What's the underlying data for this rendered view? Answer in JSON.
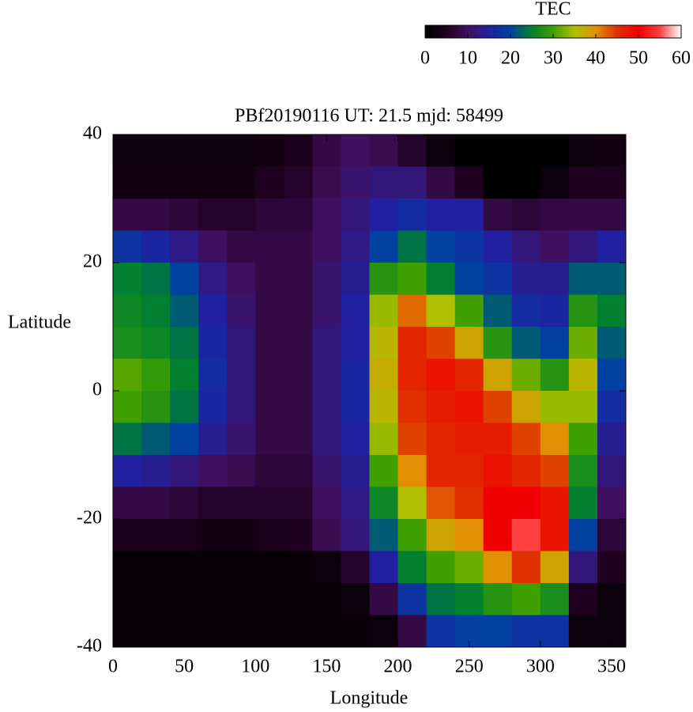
{
  "chart_data": {
    "type": "heatmap",
    "title": "PBf20190116  UT: 21.5  mjd: 58499",
    "xlabel": "Longitude",
    "ylabel": "Latitude",
    "xlim": [
      0,
      360
    ],
    "ylim": [
      -40,
      40
    ],
    "xticks": [
      0,
      50,
      100,
      150,
      200,
      250,
      300,
      350
    ],
    "yticks": [
      -40,
      -20,
      0,
      20,
      40
    ],
    "x": [
      10,
      30,
      50,
      70,
      90,
      110,
      130,
      150,
      170,
      190,
      210,
      230,
      250,
      270,
      290,
      310,
      330,
      350
    ],
    "y": [
      37.5,
      32.5,
      27.5,
      22.5,
      17.5,
      12.5,
      7.5,
      2.5,
      -2.5,
      -7.5,
      -12.5,
      -17.5,
      -22.5,
      -27.5,
      -32.5,
      -37.5
    ],
    "values": [
      [
        2,
        2,
        2,
        2,
        2,
        3,
        4,
        8,
        10,
        9,
        6,
        2,
        0,
        0,
        0,
        0,
        2,
        3
      ],
      [
        3,
        3,
        3,
        3,
        3,
        5,
        6,
        9,
        11,
        12,
        12,
        8,
        5,
        0,
        0,
        2,
        5,
        5
      ],
      [
        8,
        8,
        7,
        6,
        6,
        7,
        7,
        10,
        12,
        15,
        17,
        15,
        15,
        8,
        7,
        8,
        8,
        8
      ],
      [
        18,
        16,
        13,
        10,
        8,
        8,
        8,
        10,
        13,
        20,
        24,
        20,
        18,
        15,
        12,
        10,
        12,
        15
      ],
      [
        25,
        24,
        20,
        13,
        10,
        8,
        8,
        11,
        14,
        28,
        30,
        25,
        20,
        18,
        14,
        14,
        22,
        22
      ],
      [
        26,
        25,
        22,
        15,
        11,
        8,
        8,
        11,
        15,
        34,
        42,
        35,
        30,
        22,
        17,
        16,
        28,
        25
      ],
      [
        27,
        26,
        24,
        16,
        12,
        8,
        8,
        12,
        15,
        36,
        46,
        44,
        38,
        28,
        22,
        20,
        32,
        22
      ],
      [
        31,
        29,
        25,
        17,
        12,
        8,
        8,
        12,
        16,
        37,
        46,
        48,
        46,
        38,
        32,
        28,
        36,
        20
      ],
      [
        30,
        28,
        24,
        16,
        12,
        8,
        8,
        12,
        16,
        36,
        45,
        47,
        48,
        44,
        38,
        34,
        34,
        17
      ],
      [
        24,
        22,
        20,
        14,
        11,
        8,
        8,
        12,
        15,
        34,
        44,
        46,
        47,
        47,
        44,
        40,
        30,
        14
      ],
      [
        15,
        14,
        12,
        10,
        9,
        7,
        7,
        11,
        14,
        30,
        40,
        46,
        46,
        48,
        46,
        44,
        27,
        12
      ],
      [
        8,
        8,
        7,
        6,
        6,
        6,
        6,
        10,
        13,
        26,
        35,
        43,
        45,
        50,
        50,
        48,
        25,
        10
      ],
      [
        4,
        4,
        4,
        3,
        3,
        4,
        5,
        9,
        12,
        22,
        30,
        38,
        40,
        50,
        55,
        48,
        20,
        7
      ],
      [
        1,
        1,
        1,
        1,
        1,
        1,
        1,
        2,
        6,
        15,
        25,
        30,
        32,
        40,
        45,
        38,
        12,
        5
      ],
      [
        1,
        1,
        1,
        1,
        1,
        1,
        1,
        1,
        2,
        8,
        18,
        24,
        25,
        28,
        30,
        27,
        5,
        2
      ],
      [
        1,
        1,
        1,
        1,
        1,
        1,
        1,
        1,
        1,
        2,
        8,
        18,
        20,
        20,
        18,
        18,
        2,
        2
      ]
    ],
    "colorbar": {
      "label": "TEC",
      "lim": [
        0,
        60
      ],
      "ticks": [
        0,
        10,
        20,
        30,
        40,
        50,
        60
      ]
    },
    "colorscale": [
      "#000000",
      "#200020",
      "#401060",
      "#2020a0",
      "#0040a0",
      "#008030",
      "#40a000",
      "#b0c000",
      "#e09000",
      "#e03000",
      "#f00000",
      "#ff4040",
      "#ffffff"
    ]
  }
}
